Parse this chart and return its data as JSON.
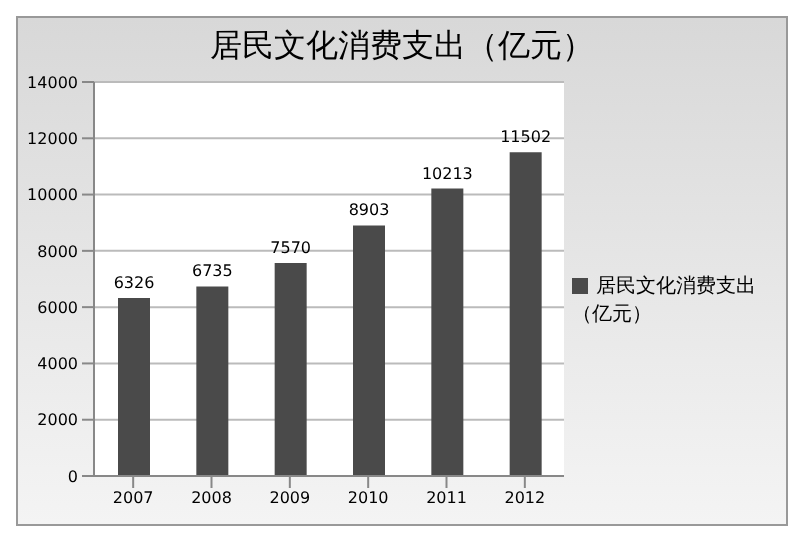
{
  "chart_data": {
    "type": "bar",
    "title": "居民文化消费支出（亿元）",
    "categories": [
      "2007",
      "2008",
      "2009",
      "2010",
      "2011",
      "2012"
    ],
    "series": [
      {
        "name": "居民文化消费支出（亿元）",
        "color": "#4a4a4a",
        "values": [
          6326,
          6735,
          7570,
          8903,
          10213,
          11502
        ]
      }
    ],
    "ylim": [
      0,
      14000
    ],
    "yticks": [
      0,
      2000,
      4000,
      6000,
      8000,
      10000,
      12000,
      14000
    ],
    "grid": "y",
    "legend": "right",
    "data_labels": true
  }
}
